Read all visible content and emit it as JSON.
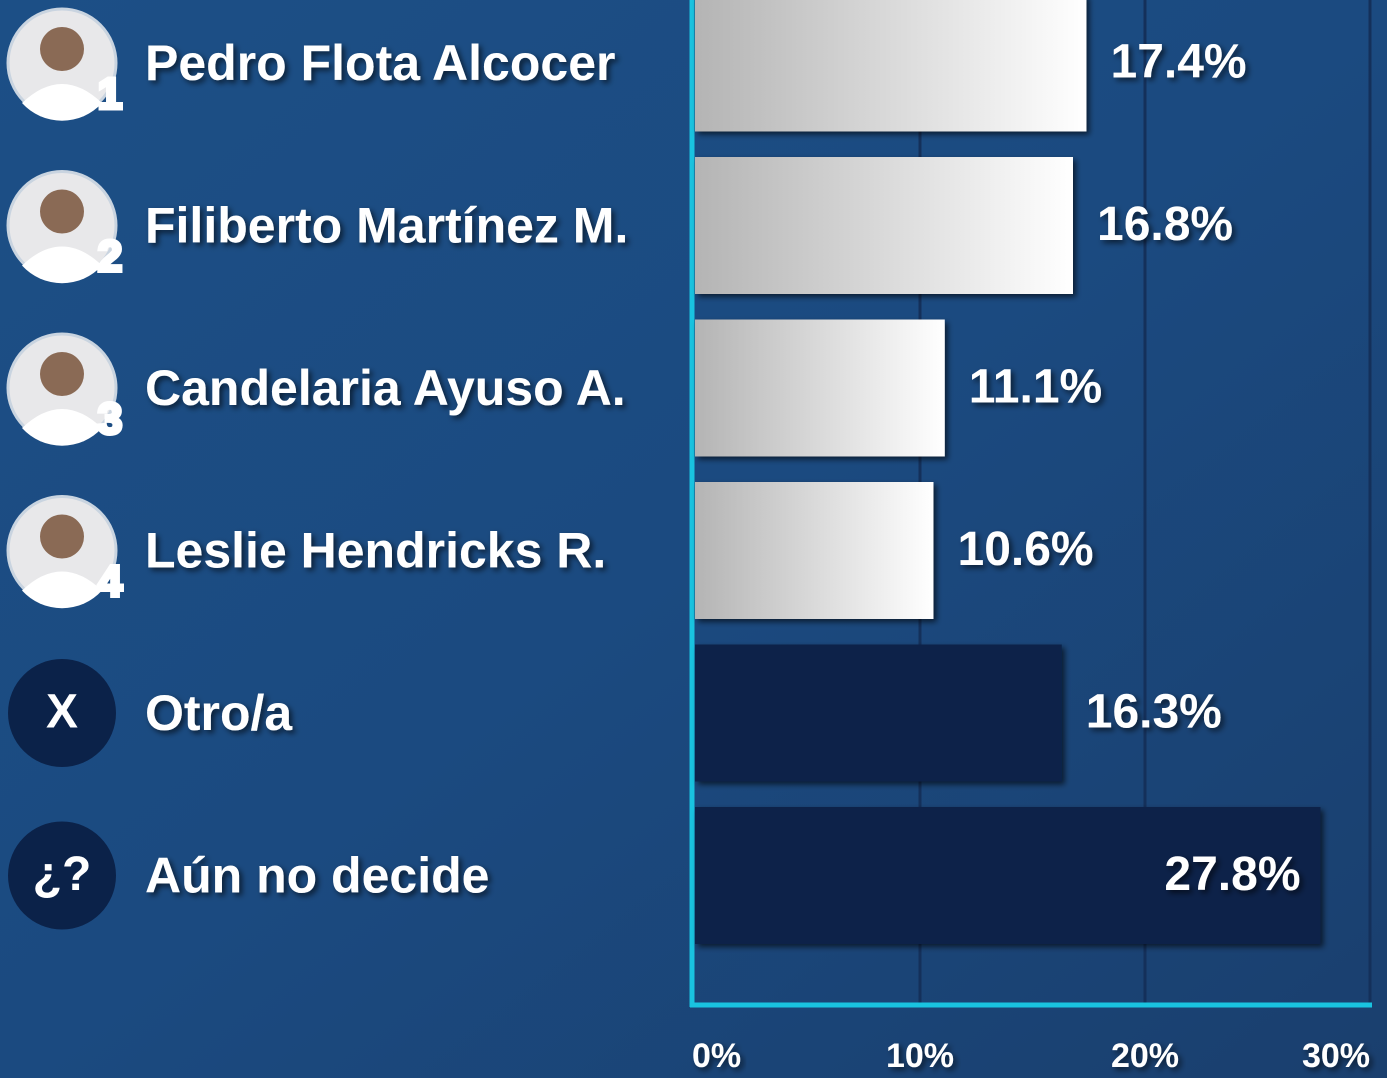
{
  "chart_data": {
    "type": "bar",
    "orientation": "horizontal",
    "categories": [
      "Pedro Flota Alcocer",
      "Filiberto Martínez M.",
      "Candelaria Ayuso A.",
      "Leslie Hendricks R.",
      "Otro/a",
      "Aún no decide"
    ],
    "badges": [
      "1",
      "2",
      "3",
      "4",
      "X",
      "¿?"
    ],
    "values": [
      17.4,
      16.8,
      11.1,
      10.6,
      16.3,
      27.8
    ],
    "value_labels": [
      "17.4%",
      "16.8%",
      "11.1%",
      "10.6%",
      "16.3%",
      "27.8%"
    ],
    "colors": [
      "#ffffff",
      "#ffffff",
      "#ffffff",
      "#ffffff",
      "#0b2249",
      "#0b2249"
    ],
    "xlim": [
      0,
      30
    ],
    "xticks": [
      {
        "value": 0,
        "label": "0%"
      },
      {
        "value": 10,
        "label": "10%"
      },
      {
        "value": 20,
        "label": "20%"
      },
      {
        "value": 30,
        "label": "30%"
      }
    ],
    "grid": true
  }
}
